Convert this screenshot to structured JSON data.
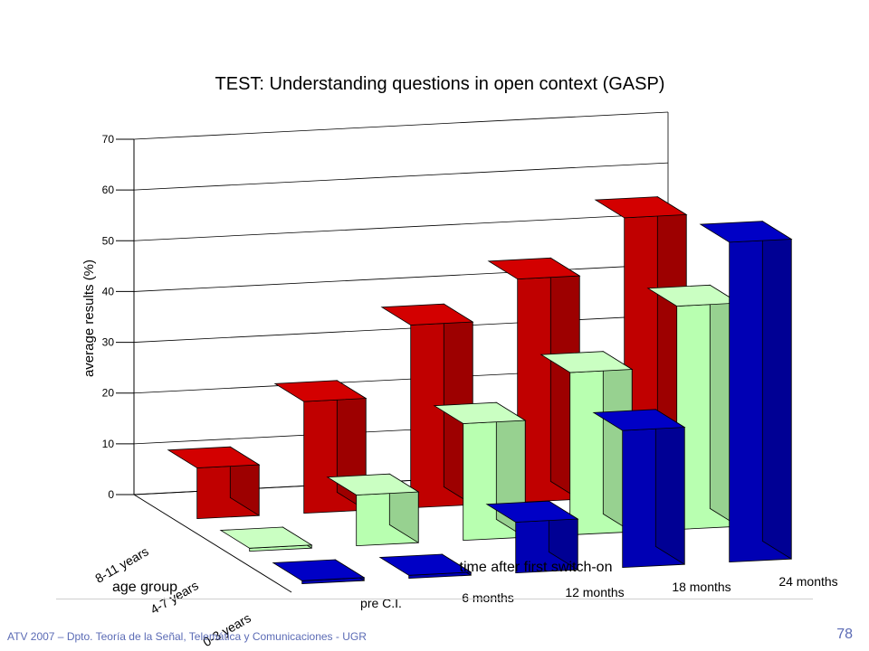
{
  "chart_data": {
    "type": "bar",
    "title": "TEST: Understanding questions in open context (GASP)",
    "xlabel": "time after first switch-on",
    "ylabel": "average results (%)",
    "depth_label": "age group",
    "categories": [
      "pre C.I.",
      "6 months",
      "12 months",
      "18 months",
      "24 months"
    ],
    "ylim": [
      0,
      70
    ],
    "yticks": [
      "0",
      "10",
      "20",
      "30",
      "40",
      "50",
      "60",
      "70"
    ],
    "grid": true,
    "series": [
      {
        "name": "8-11 years",
        "color": "#c00000",
        "values": [
          10,
          22,
          36,
          44,
          55
        ]
      },
      {
        "name": "4-7 years",
        "color": "#b8ffb0",
        "values": [
          0,
          10,
          23,
          32,
          44
        ]
      },
      {
        "name": "0-3 years",
        "color": "#0000b4",
        "values": [
          0,
          0,
          10,
          27,
          63
        ]
      }
    ]
  },
  "footer": {
    "text": "ATV 2007 – Dpto. Teoría de la Señal, Telemática y Comunicaciones - UGR",
    "page_number": "78"
  }
}
